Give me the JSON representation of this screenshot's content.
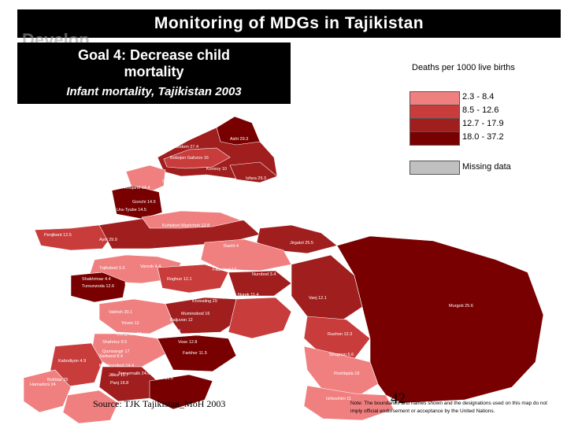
{
  "slide": {
    "title": "Monitoring of MDGs in Tajikistan",
    "ghost_logo": "Develop",
    "goal_line1": "Goal 4: Decrease child",
    "goal_line2": "mortality",
    "subtitle": "Infant mortality, Tajikistan 2003",
    "source": "Source: TJK Tajikistan_MoH 2003",
    "page_number": "42",
    "note": "Note: The boundaries and names shown and the designations used on this map do not imply official endorsement or acceptance by the United Nations."
  },
  "legend": {
    "title": "Deaths per 1000 live births",
    "classes": [
      {
        "label": "2.3 - 8.4",
        "color": "#f08080"
      },
      {
        "label": "8.5 - 12.6",
        "color": "#c83c3c"
      },
      {
        "label": "12.7 - 17.9",
        "color": "#a01e1e"
      },
      {
        "label": "18.0 - 37.2",
        "color": "#780000"
      }
    ],
    "missing_label": "Missing data",
    "missing_color": "#c0c0c0"
  },
  "districts": [
    {
      "label": "Asht 29.3"
    },
    {
      "label": "Kanibodom 27.4"
    },
    {
      "label": "Bobojon Gafurov 16"
    },
    {
      "label": "Konsoy 10"
    },
    {
      "label": "Khujand 14.4"
    },
    {
      "label": "Isfara 29.3"
    },
    {
      "label": "Gonchi 14.5"
    },
    {
      "label": "Ura-Tyube 14.5"
    },
    {
      "label": "Shahriston 12.5"
    },
    {
      "label": "Ayni 29.9"
    },
    {
      "label": "Penjikent 12.5"
    },
    {
      "label": "Kuhistoni Mastchoh 12.8"
    },
    {
      "label": "Jirgatol 25.5"
    },
    {
      "label": "Rasht 4"
    },
    {
      "label": "Tojikobod 3.3"
    },
    {
      "label": "Varzob 4.4"
    },
    {
      "label": "Faizobod 12"
    },
    {
      "label": "Roghun 12.1"
    },
    {
      "label": "Nurobod 3.4"
    },
    {
      "label": "Shakhrinav 4.4"
    },
    {
      "label": "Tursunzoda 12.6"
    },
    {
      "label": "Dushanbe"
    },
    {
      "label": "Rudaki 17"
    },
    {
      "label": "Vakhsh 20.1"
    },
    {
      "label": "Nurek 11.4"
    },
    {
      "label": "Vanj 12.1"
    },
    {
      "label": "Murgob 25.6"
    },
    {
      "label": "Khovaling 29"
    },
    {
      "label": "Muminobod 16"
    },
    {
      "label": "Baljuvon 12"
    },
    {
      "label": "Rushon 12.3"
    },
    {
      "label": "Shugnon 5.6"
    },
    {
      "label": "Kulob 5.4"
    },
    {
      "label": "Vose 12.8"
    },
    {
      "label": "Shahrtuz 9.5"
    },
    {
      "label": "Qumsangir 17"
    },
    {
      "label": "Farkhor 11.5"
    },
    {
      "label": "Kabodiyon 4.9"
    },
    {
      "label": "Jilikul 11.7"
    },
    {
      "label": "Panj 16.8"
    },
    {
      "label": "Ishkoshim 11"
    },
    {
      "label": "Hamadoni 24"
    },
    {
      "label": "Danghara 24"
    },
    {
      "label": "Yovon 12"
    },
    {
      "label": "Kolkhozobod 14.4"
    },
    {
      "label": "Jomi 31.6"
    },
    {
      "label": "Bokhtar 25"
    },
    {
      "label": "Sarband 8.4"
    },
    {
      "label": "Temurmalik 24.6"
    },
    {
      "label": "Roshtqala 18"
    }
  ]
}
